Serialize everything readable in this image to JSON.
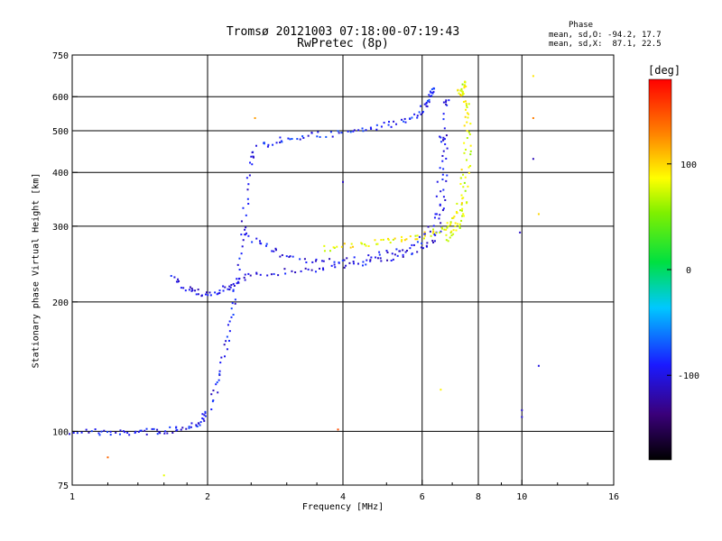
{
  "title_line1": "Tromsø 20121003 07:18:00-07:19:43",
  "title_line2": "RwPretec (8p)",
  "phase_legend": {
    "title": "Phase",
    "o_stats": "mean, sd,O: -94.2, 17.7",
    "x_stats": "mean, sd,X:  87.1, 22.5"
  },
  "colorbar": {
    "unit_label": "[deg]",
    "ticks": [
      {
        "value": 100,
        "label": "100"
      },
      {
        "value": 0,
        "label": "0"
      },
      {
        "value": -100,
        "label": "-100"
      }
    ],
    "range": [
      -180,
      180
    ]
  },
  "chart_data": {
    "type": "scatter",
    "title": "Tromsø 20121003 07:18:00-07:19:43",
    "subtitle": "RwPretec (8p)",
    "xlabel": "Frequency [MHz]",
    "ylabel": "Stationary phase Virtual Height [km]",
    "xscale": "log",
    "yscale": "log",
    "xlim": [
      1,
      16
    ],
    "ylim": [
      75,
      750
    ],
    "x_ticks": [
      {
        "value": 1,
        "label": "1"
      },
      {
        "value": 2,
        "label": "2"
      },
      {
        "value": 4,
        "label": "4"
      },
      {
        "value": 6,
        "label": "6"
      },
      {
        "value": 8,
        "label": "8"
      },
      {
        "value": 10,
        "label": "10"
      },
      {
        "value": 16,
        "label": "16"
      }
    ],
    "y_ticks": [
      {
        "value": 75,
        "label": "75"
      },
      {
        "value": 100,
        "label": "100"
      },
      {
        "value": 200,
        "label": "200"
      },
      {
        "value": 300,
        "label": "300"
      },
      {
        "value": 400,
        "label": "400"
      },
      {
        "value": 500,
        "label": "500"
      },
      {
        "value": 600,
        "label": "600"
      },
      {
        "value": 750,
        "label": "750"
      }
    ],
    "x_gridlines": [
      2,
      4,
      6,
      8,
      10
    ],
    "y_gridlines": [
      100,
      200,
      300,
      400,
      500,
      600
    ],
    "grid": true,
    "color_by": "phase (deg)",
    "traces": [
      {
        "name": "",
        "phase": -95,
        "points": [
          [
            1.0,
            100
          ],
          [
            1.1,
            100
          ],
          [
            1.2,
            99
          ],
          [
            1.3,
            99
          ],
          [
            1.4,
            100
          ],
          [
            1.5,
            100
          ],
          [
            1.6,
            100
          ],
          [
            1.7,
            101
          ],
          [
            1.8,
            103
          ],
          [
            1.9,
            104
          ],
          [
            1.95,
            106
          ],
          [
            2.0,
            112
          ],
          [
            2.1,
            125
          ],
          [
            2.15,
            140
          ],
          [
            2.2,
            160
          ],
          [
            2.25,
            185
          ],
          [
            2.3,
            210
          ],
          [
            2.35,
            250
          ],
          [
            2.4,
            300
          ],
          [
            2.45,
            360
          ],
          [
            2.5,
            440
          ]
        ]
      },
      {
        "name": "",
        "phase": -100,
        "points": [
          [
            1.68,
            228
          ],
          [
            1.75,
            218
          ],
          [
            1.85,
            212
          ],
          [
            1.95,
            210
          ],
          [
            2.05,
            210
          ],
          [
            2.15,
            212
          ],
          [
            2.25,
            218
          ],
          [
            2.35,
            224
          ],
          [
            2.5,
            230
          ],
          [
            2.8,
            234
          ],
          [
            3.2,
            237
          ],
          [
            3.6,
            240
          ],
          [
            4.0,
            243
          ],
          [
            4.5,
            247
          ],
          [
            5.0,
            252
          ],
          [
            5.5,
            258
          ],
          [
            6.0,
            266
          ],
          [
            6.4,
            280
          ],
          [
            6.6,
            300
          ],
          [
            6.7,
            350
          ],
          [
            6.75,
            450
          ],
          [
            6.8,
            580
          ]
        ]
      },
      {
        "name": "",
        "phase": -95,
        "points": [
          [
            2.4,
            290
          ],
          [
            2.6,
            275
          ],
          [
            2.8,
            262
          ],
          [
            3.0,
            256
          ],
          [
            3.4,
            250
          ],
          [
            3.8,
            248
          ],
          [
            4.3,
            250
          ],
          [
            4.8,
            256
          ],
          [
            5.3,
            262
          ],
          [
            5.8,
            272
          ],
          [
            6.2,
            290
          ],
          [
            6.5,
            330
          ],
          [
            6.6,
            400
          ],
          [
            6.65,
            480
          ]
        ]
      },
      {
        "name": "",
        "phase": -90,
        "points": [
          [
            2.6,
            460
          ],
          [
            2.8,
            470
          ],
          [
            3.0,
            480
          ],
          [
            3.3,
            485
          ],
          [
            3.6,
            490
          ],
          [
            4.0,
            495
          ],
          [
            4.4,
            500
          ],
          [
            4.8,
            510
          ],
          [
            5.2,
            520
          ],
          [
            5.6,
            535
          ],
          [
            5.9,
            550
          ],
          [
            6.1,
            570
          ],
          [
            6.2,
            590
          ],
          [
            6.3,
            620
          ]
        ]
      },
      {
        "name": "",
        "phase": 85,
        "points": [
          [
            3.6,
            266
          ],
          [
            4.0,
            268
          ],
          [
            4.4,
            272
          ],
          [
            4.8,
            275
          ],
          [
            5.2,
            278
          ],
          [
            5.6,
            282
          ],
          [
            6.0,
            285
          ],
          [
            6.4,
            290
          ],
          [
            6.8,
            296
          ],
          [
            7.0,
            305
          ],
          [
            7.2,
            320
          ],
          [
            7.3,
            350
          ],
          [
            7.4,
            400
          ],
          [
            7.5,
            480
          ],
          [
            7.5,
            560
          ],
          [
            7.3,
            620
          ]
        ]
      },
      {
        "name": "",
        "phase": 75,
        "points": [
          [
            6.8,
            280
          ],
          [
            7.0,
            290
          ],
          [
            7.2,
            300
          ],
          [
            7.4,
            320
          ],
          [
            7.5,
            360
          ],
          [
            7.6,
            420
          ],
          [
            7.6,
            520
          ],
          [
            7.5,
            600
          ],
          [
            7.4,
            640
          ]
        ]
      }
    ],
    "isolated_points": [
      [
        2.55,
        535,
        120
      ],
      [
        4.0,
        380,
        -110
      ],
      [
        6.6,
        125,
        90
      ],
      [
        9.9,
        290,
        -110
      ],
      [
        10.0,
        108,
        -105
      ],
      [
        10.0,
        112,
        -110
      ],
      [
        10.6,
        670,
        95
      ],
      [
        10.6,
        535,
        130
      ],
      [
        10.6,
        430,
        -115
      ],
      [
        10.9,
        320,
        100
      ],
      [
        10.9,
        142,
        -100
      ],
      [
        1.2,
        87,
        140
      ],
      [
        1.6,
        79,
        80
      ],
      [
        3.9,
        101,
        150
      ]
    ]
  }
}
